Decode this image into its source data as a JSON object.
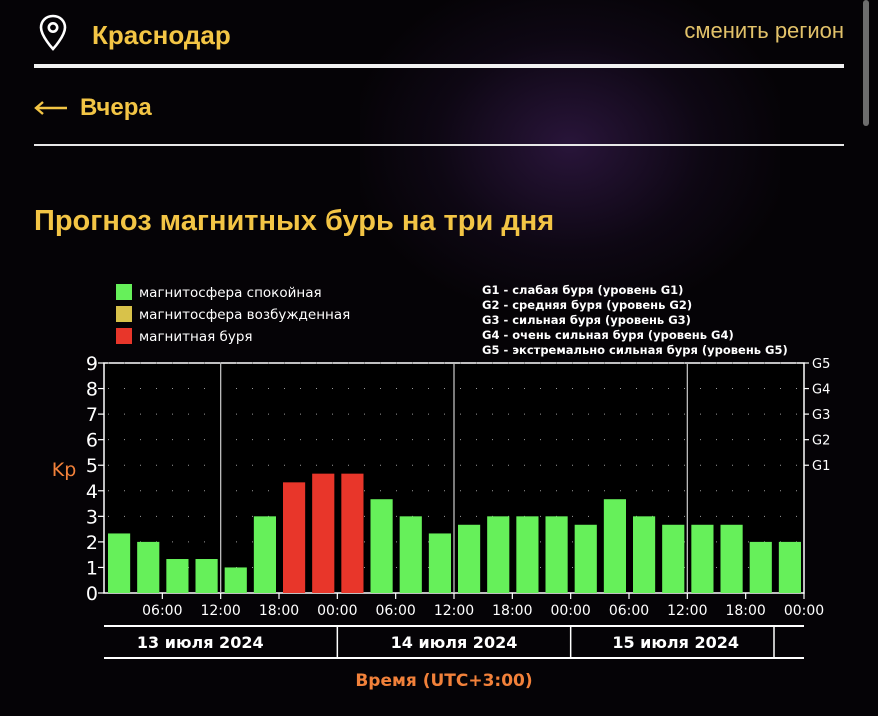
{
  "header": {
    "city": "Краснодар",
    "change_region_label": "сменить регион"
  },
  "nav": {
    "back_label": "Вчера"
  },
  "section": {
    "title": "Прогноз магнитных бурь на три дня"
  },
  "colors": {
    "accent": "#f3c545",
    "quiet": "#66f05a",
    "excited": "#d8c24a",
    "storm": "#e8362a"
  },
  "chart_data": {
    "type": "bar",
    "ylabel": "Kp",
    "xlabel": "Время (UTC+3:00)",
    "ylim": [
      0,
      9
    ],
    "yticks": [
      "0",
      "1",
      "2",
      "3",
      "4",
      "5",
      "6",
      "7",
      "8",
      "9"
    ],
    "right_ticks": [
      "G1",
      "G2",
      "G3",
      "G4",
      "G5"
    ],
    "legend": [
      {
        "label": "магнитосфера спокойная",
        "level": "quiet"
      },
      {
        "label": "магнитосфера возбужденная",
        "level": "excited"
      },
      {
        "label": "магнитная буря",
        "level": "storm"
      }
    ],
    "storm_levels": [
      "G1 - слабая буря (уровень G1)",
      "G2 - средняя буря (уровень G2)",
      "G3 - сильная буря (уровень G3)",
      "G4 - очень сильная буря (уровень G4)",
      "G5 - экстремально сильная буря (уровень G5)"
    ],
    "time_ticks": [
      "06:00",
      "12:00",
      "18:00",
      "00:00",
      "06:00",
      "12:00",
      "18:00",
      "00:00",
      "06:00",
      "12:00",
      "18:00",
      "00:00"
    ],
    "days": [
      "13 июля 2024",
      "14 июля 2024",
      "15 июля 2024"
    ],
    "values": [
      2.33,
      2.0,
      1.33,
      1.33,
      1.0,
      3.0,
      4.33,
      4.67,
      4.67,
      3.67,
      3.0,
      2.33,
      2.67,
      3.0,
      3.0,
      3.0,
      2.67,
      3.67,
      3.0,
      2.67,
      2.67,
      2.67,
      2.0,
      2.0
    ],
    "levels": [
      "quiet",
      "quiet",
      "quiet",
      "quiet",
      "quiet",
      "quiet",
      "storm",
      "storm",
      "storm",
      "quiet",
      "quiet",
      "quiet",
      "quiet",
      "quiet",
      "quiet",
      "quiet",
      "quiet",
      "quiet",
      "quiet",
      "quiet",
      "quiet",
      "quiet",
      "quiet",
      "quiet"
    ]
  }
}
